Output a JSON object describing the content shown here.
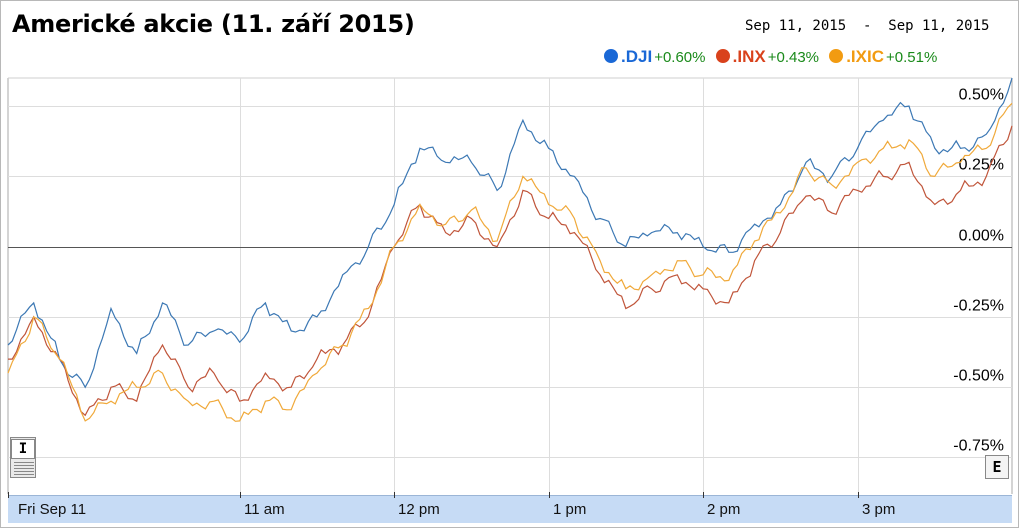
{
  "title": "Americké akcie (11. září 2015)",
  "date_range": "Sep 11, 2015  -  Sep 11, 2015",
  "legend": [
    {
      "name": ".DJI",
      "change": "+0.60%",
      "color": "#1a68d6"
    },
    {
      "name": ".INX",
      "change": "+0.43%",
      "color": "#d9421c"
    },
    {
      "name": ".IXIC",
      "change": "+0.51%",
      "color": "#f29b11"
    }
  ],
  "controls": {
    "zoom_label": "I",
    "export_label": "E"
  },
  "chart_data": {
    "type": "line",
    "title": "Americké akcie (11. září 2015)",
    "x_unit": "time (ET), Sep 11, 2015",
    "x_ticks": [
      {
        "label": "Fri Sep 11",
        "time": "9:30"
      },
      {
        "label": "11 am",
        "time": "11:00"
      },
      {
        "label": "12 pm",
        "time": "12:00"
      },
      {
        "label": "1 pm",
        "time": "13:00"
      },
      {
        "label": "2 pm",
        "time": "14:00"
      },
      {
        "label": "3 pm",
        "time": "15:00"
      }
    ],
    "xlim": [
      "9:30",
      "16:00"
    ],
    "y_ticks": [
      "0.50%",
      "0.25%",
      "0.00%",
      "-0.25%",
      "-0.50%",
      "-0.75%"
    ],
    "ylim": [
      -0.88,
      0.6
    ],
    "y_unit": "%",
    "grid": true,
    "legend_position": "top-right",
    "series": [
      {
        "name": ".DJI",
        "color": "#3c78b4",
        "x": [
          "9:30",
          "9:40",
          "9:50",
          "10:00",
          "10:10",
          "10:20",
          "10:30",
          "10:40",
          "10:50",
          "11:00",
          "11:10",
          "11:20",
          "11:30",
          "11:40",
          "11:50",
          "12:00",
          "12:10",
          "12:20",
          "12:30",
          "12:40",
          "12:50",
          "13:00",
          "13:10",
          "13:20",
          "13:30",
          "13:40",
          "13:50",
          "14:00",
          "14:10",
          "14:20",
          "14:30",
          "14:40",
          "14:50",
          "15:00",
          "15:10",
          "15:20",
          "15:30",
          "15:40",
          "15:50",
          "16:00"
        ],
        "values": [
          -0.35,
          -0.2,
          -0.4,
          -0.5,
          -0.22,
          -0.38,
          -0.2,
          -0.35,
          -0.3,
          -0.34,
          -0.2,
          -0.3,
          -0.25,
          -0.1,
          0.0,
          0.15,
          0.35,
          0.3,
          0.3,
          0.2,
          0.45,
          0.35,
          0.25,
          0.1,
          0.0,
          0.05,
          0.05,
          0.0,
          -0.02,
          0.08,
          0.15,
          0.3,
          0.25,
          0.35,
          0.45,
          0.5,
          0.35,
          0.35,
          0.4,
          0.6
        ]
      },
      {
        "name": ".INX",
        "color": "#c0553a",
        "x": [
          "9:30",
          "9:40",
          "9:50",
          "10:00",
          "10:10",
          "10:20",
          "10:30",
          "10:40",
          "10:50",
          "11:00",
          "11:10",
          "11:20",
          "11:30",
          "11:40",
          "11:50",
          "12:00",
          "12:10",
          "12:20",
          "12:30",
          "12:40",
          "12:50",
          "13:00",
          "13:10",
          "13:20",
          "13:30",
          "13:40",
          "13:50",
          "14:00",
          "14:10",
          "14:20",
          "14:30",
          "14:40",
          "14:50",
          "15:00",
          "15:10",
          "15:20",
          "15:30",
          "15:40",
          "15:50",
          "16:00"
        ],
        "values": [
          -0.4,
          -0.25,
          -0.4,
          -0.6,
          -0.5,
          -0.55,
          -0.35,
          -0.5,
          -0.45,
          -0.55,
          -0.45,
          -0.5,
          -0.4,
          -0.35,
          -0.25,
          0.0,
          0.15,
          0.05,
          0.1,
          0.0,
          0.2,
          0.1,
          0.05,
          -0.1,
          -0.22,
          -0.15,
          -0.1,
          -0.15,
          -0.2,
          -0.05,
          0.05,
          0.18,
          0.12,
          0.2,
          0.25,
          0.3,
          0.15,
          0.2,
          0.25,
          0.43
        ]
      },
      {
        "name": ".IXIC",
        "color": "#f0a93a",
        "x": [
          "9:30",
          "9:40",
          "9:50",
          "10:00",
          "10:10",
          "10:20",
          "10:30",
          "10:40",
          "10:50",
          "11:00",
          "11:10",
          "11:20",
          "11:30",
          "11:40",
          "11:50",
          "12:00",
          "12:10",
          "12:20",
          "12:30",
          "12:40",
          "12:50",
          "13:00",
          "13:10",
          "13:20",
          "13:30",
          "13:40",
          "13:50",
          "14:00",
          "14:10",
          "14:20",
          "14:30",
          "14:40",
          "14:50",
          "15:00",
          "15:10",
          "15:20",
          "15:30",
          "15:40",
          "15:50",
          "16:00"
        ],
        "values": [
          -0.45,
          -0.25,
          -0.4,
          -0.62,
          -0.55,
          -0.5,
          -0.45,
          -0.55,
          -0.55,
          -0.62,
          -0.55,
          -0.58,
          -0.45,
          -0.35,
          -0.22,
          0.0,
          0.15,
          0.08,
          0.13,
          0.02,
          0.25,
          0.15,
          0.1,
          -0.05,
          -0.15,
          -0.1,
          -0.05,
          -0.1,
          -0.12,
          0.02,
          0.12,
          0.28,
          0.22,
          0.3,
          0.35,
          0.38,
          0.25,
          0.3,
          0.35,
          0.51
        ]
      }
    ]
  }
}
